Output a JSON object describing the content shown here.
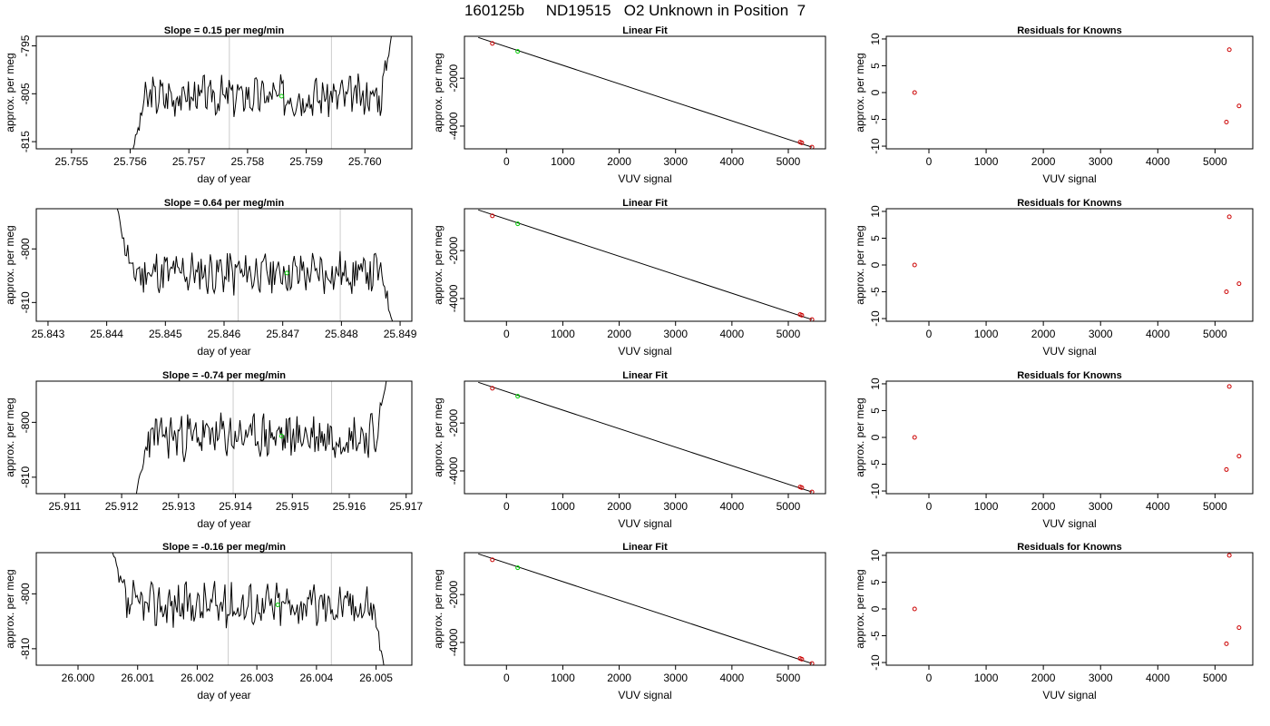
{
  "main_title": "160125b     ND19515   O2 Unknown in Position  7",
  "colors": {
    "trace": "#000000",
    "marker_line": "#cccccc",
    "current_point": "#00cc00",
    "known_point": "#cc0000"
  },
  "chart_data": [
    {
      "panel": "time-series",
      "type": "line",
      "title": "Slope =  0.15  per meg/min",
      "xlabel": "day of year",
      "ylabel": "approx. per meg",
      "xlim": [
        25.7544,
        25.7608
      ],
      "ylim": [
        -816.5,
        -793
      ],
      "xticks": [
        "25.755",
        "25.756",
        "25.757",
        "25.758",
        "25.759",
        "25.760"
      ],
      "yticks": [
        "-815",
        "-805",
        "-795"
      ],
      "vlines": [
        25.75769,
        25.75943
      ],
      "current_point": [
        25.75858,
        -805.5
      ],
      "start_x": 25.75605,
      "start_y": -816.5,
      "end_x": 25.76045,
      "end_y": -793,
      "noise_seed": 3
    },
    {
      "panel": "linear-fit",
      "type": "scatter",
      "title": "Linear Fit",
      "xlabel": "VUV signal",
      "ylabel": "approx. per meg",
      "xlim": [
        -745,
        5660
      ],
      "ylim": [
        -4950,
        -250
      ],
      "xticks": [
        "0",
        "1000",
        "2000",
        "3000",
        "4000",
        "5000"
      ],
      "yticks": [
        "-4000",
        "-2000"
      ],
      "fit_line": [
        [
          -500,
          -300
        ],
        [
          5420,
          -4880
        ]
      ],
      "knowns": [
        [
          -250,
          -550
        ],
        [
          5210,
          -4670
        ],
        [
          5240,
          -4700
        ],
        [
          5420,
          -4880
        ]
      ],
      "unknown": [
        200,
        -880
      ]
    },
    {
      "panel": "residuals",
      "type": "scatter",
      "title": "Residuals for Knowns",
      "xlabel": "VUV signal",
      "ylabel": "approx. per meg",
      "xlim": [
        -745,
        5660
      ],
      "ylim": [
        -10.5,
        10.5
      ],
      "xticks": [
        "0",
        "1000",
        "2000",
        "3000",
        "4000",
        "5000"
      ],
      "yticks": [
        "-10",
        "-5",
        "0",
        "5",
        "10"
      ],
      "points": [
        [
          -250,
          0
        ],
        [
          5250,
          8
        ],
        [
          5200,
          -5.5
        ],
        [
          5420,
          -2.5
        ]
      ]
    },
    {
      "panel": "time-series",
      "type": "line",
      "title": "Slope =  0.64  per meg/min",
      "xlabel": "day of year",
      "ylabel": "approx. per meg",
      "xlim": [
        25.8428,
        25.8492
      ],
      "ylim": [
        -813.5,
        -792.5
      ],
      "xticks": [
        "25.843",
        "25.844",
        "25.845",
        "25.846",
        "25.847",
        "25.848",
        "25.849"
      ],
      "yticks": [
        "-810",
        "-800"
      ],
      "vlines": [
        25.84624,
        25.84798
      ],
      "current_point": [
        25.84707,
        -804.5
      ],
      "start_x": 25.84418,
      "start_y": -792.5,
      "end_x": 25.84887,
      "end_y": -813.5,
      "noise_seed": 11
    },
    {
      "panel": "linear-fit",
      "type": "scatter",
      "title": "Linear Fit",
      "xlabel": "VUV signal",
      "ylabel": "approx. per meg",
      "xlim": [
        -745,
        5660
      ],
      "ylim": [
        -4950,
        -250
      ],
      "xticks": [
        "0",
        "1000",
        "2000",
        "3000",
        "4000",
        "5000"
      ],
      "yticks": [
        "-4000",
        "-2000"
      ],
      "fit_line": [
        [
          -500,
          -300
        ],
        [
          5420,
          -4880
        ]
      ],
      "knowns": [
        [
          -250,
          -550
        ],
        [
          5210,
          -4670
        ],
        [
          5240,
          -4700
        ],
        [
          5420,
          -4880
        ]
      ],
      "unknown": [
        200,
        -880
      ]
    },
    {
      "panel": "residuals",
      "type": "scatter",
      "title": "Residuals for Knowns",
      "xlabel": "VUV signal",
      "ylabel": "approx. per meg",
      "xlim": [
        -745,
        5660
      ],
      "ylim": [
        -10.5,
        10.5
      ],
      "xticks": [
        "0",
        "1000",
        "2000",
        "3000",
        "4000",
        "5000"
      ],
      "yticks": [
        "-10",
        "-5",
        "0",
        "5",
        "10"
      ],
      "points": [
        [
          -250,
          0
        ],
        [
          5250,
          9
        ],
        [
          5200,
          -5
        ],
        [
          5420,
          -3.5
        ]
      ]
    },
    {
      "panel": "time-series",
      "type": "line",
      "title": "Slope =  -0.74  per meg/min",
      "xlabel": "day of year",
      "ylabel": "approx. per meg",
      "xlim": [
        25.9105,
        25.9171
      ],
      "ylim": [
        -813,
        -792.5
      ],
      "xticks": [
        "25.911",
        "25.912",
        "25.913",
        "25.914",
        "25.915",
        "25.916",
        "25.917"
      ],
      "yticks": [
        "-810",
        "-800"
      ],
      "vlines": [
        25.91396,
        25.91569
      ],
      "current_point": [
        25.91481,
        -802.5
      ],
      "start_x": 25.91226,
      "start_y": -813,
      "end_x": 25.91665,
      "end_y": -792.5,
      "noise_seed": 23
    },
    {
      "panel": "linear-fit",
      "type": "scatter",
      "title": "Linear Fit",
      "xlabel": "VUV signal",
      "ylabel": "approx. per meg",
      "xlim": [
        -745,
        5660
      ],
      "ylim": [
        -4950,
        -250
      ],
      "xticks": [
        "0",
        "1000",
        "2000",
        "3000",
        "4000",
        "5000"
      ],
      "yticks": [
        "-4000",
        "-2000"
      ],
      "fit_line": [
        [
          -500,
          -300
        ],
        [
          5420,
          -4880
        ]
      ],
      "knowns": [
        [
          -250,
          -550
        ],
        [
          5210,
          -4670
        ],
        [
          5240,
          -4700
        ],
        [
          5420,
          -4880
        ]
      ],
      "unknown": [
        200,
        -880
      ]
    },
    {
      "panel": "residuals",
      "type": "scatter",
      "title": "Residuals for Knowns",
      "xlabel": "VUV signal",
      "ylabel": "approx. per meg",
      "xlim": [
        -745,
        5660
      ],
      "ylim": [
        -10.5,
        10.5
      ],
      "xticks": [
        "0",
        "1000",
        "2000",
        "3000",
        "4000",
        "5000"
      ],
      "yticks": [
        "-10",
        "-5",
        "0",
        "5",
        "10"
      ],
      "points": [
        [
          -250,
          0
        ],
        [
          5250,
          9.5
        ],
        [
          5200,
          -6
        ],
        [
          5420,
          -3.5
        ]
      ]
    },
    {
      "panel": "time-series",
      "type": "line",
      "title": "Slope =  -0.16  per meg/min",
      "xlabel": "day of year",
      "ylabel": "approx. per meg",
      "xlim": [
        25.9993,
        26.0056
      ],
      "ylim": [
        -813,
        -792.5
      ],
      "xticks": [
        "26.000",
        "26.001",
        "26.002",
        "26.003",
        "26.004",
        "26.005"
      ],
      "yticks": [
        "-810",
        "-800"
      ],
      "vlines": [
        26.00252,
        26.00425
      ],
      "current_point": [
        26.00335,
        -802
      ],
      "start_x": 26.00058,
      "start_y": -792.5,
      "end_x": 26.00513,
      "end_y": -813,
      "noise_seed": 37
    },
    {
      "panel": "linear-fit",
      "type": "scatter",
      "title": "Linear Fit",
      "xlabel": "VUV signal",
      "ylabel": "approx. per meg",
      "xlim": [
        -745,
        5660
      ],
      "ylim": [
        -4950,
        -250
      ],
      "xticks": [
        "0",
        "1000",
        "2000",
        "3000",
        "4000",
        "5000"
      ],
      "yticks": [
        "-4000",
        "-2000"
      ],
      "fit_line": [
        [
          -500,
          -300
        ],
        [
          5420,
          -4880
        ]
      ],
      "knowns": [
        [
          -250,
          -550
        ],
        [
          5210,
          -4670
        ],
        [
          5240,
          -4700
        ],
        [
          5420,
          -4880
        ]
      ],
      "unknown": [
        200,
        -880
      ]
    },
    {
      "panel": "residuals",
      "type": "scatter",
      "title": "Residuals for Knowns",
      "xlabel": "VUV signal",
      "ylabel": "approx. per meg",
      "xlim": [
        -745,
        5660
      ],
      "ylim": [
        -10.5,
        10.5
      ],
      "xticks": [
        "0",
        "1000",
        "2000",
        "3000",
        "4000",
        "5000"
      ],
      "yticks": [
        "-10",
        "-5",
        "0",
        "5",
        "10"
      ],
      "points": [
        [
          -250,
          0
        ],
        [
          5250,
          10
        ],
        [
          5200,
          -6.5
        ],
        [
          5420,
          -3.5
        ]
      ]
    }
  ]
}
